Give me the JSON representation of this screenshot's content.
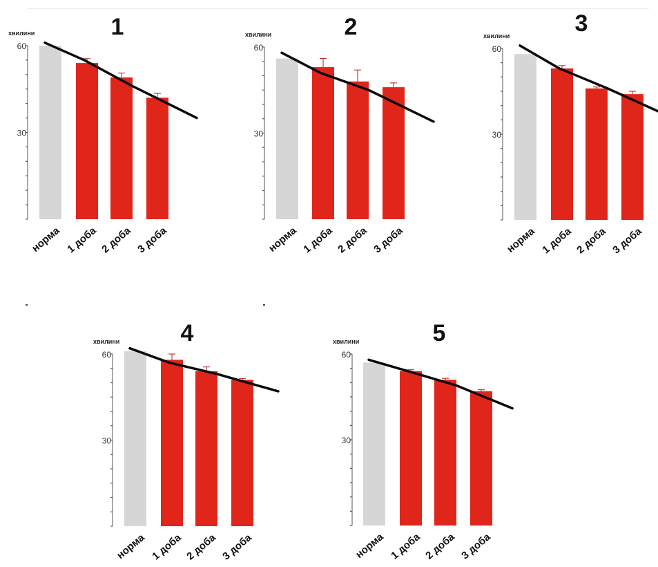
{
  "chart_data": [
    {
      "type": "bar",
      "title": "1",
      "ylabel": "хвилини",
      "ylim": [
        0,
        60
      ],
      "yticks": [
        30,
        60
      ],
      "categories": [
        "норма",
        "1 доба",
        "2 доба",
        "3 доба"
      ],
      "values": [
        60,
        54,
        49,
        42
      ],
      "errors": [
        0,
        1.5,
        1.5,
        1.5
      ],
      "bar_colors": [
        "#d6d6d6",
        "#e0261a",
        "#e0261a",
        "#e0261a"
      ],
      "trend_line": [
        61,
        55,
        46,
        35
      ]
    },
    {
      "type": "bar",
      "title": "2",
      "ylabel": "хвилини",
      "ylim": [
        0,
        60
      ],
      "yticks": [
        30,
        60
      ],
      "categories": [
        "норма",
        "1 доба",
        "2 доба",
        "3 доба"
      ],
      "values": [
        56,
        53,
        48,
        46
      ],
      "errors": [
        0,
        3,
        4,
        1.5
      ],
      "bar_colors": [
        "#d6d6d6",
        "#e0261a",
        "#e0261a",
        "#e0261a"
      ],
      "trend_line": [
        58,
        51,
        45,
        34
      ]
    },
    {
      "type": "bar",
      "title": "3",
      "ylabel": "хвилини",
      "ylim": [
        0,
        60
      ],
      "yticks": [
        30,
        60
      ],
      "categories": [
        "норма",
        "1 доба",
        "2 доба",
        "3 доба"
      ],
      "values": [
        58,
        53,
        46,
        44
      ],
      "errors": [
        0,
        1,
        0.5,
        1
      ],
      "bar_colors": [
        "#d6d6d6",
        "#e0261a",
        "#e0261a",
        "#e0261a"
      ],
      "trend_line": [
        61,
        53,
        46,
        38
      ]
    },
    {
      "type": "bar",
      "title": "4",
      "ylabel": "хвилини",
      "ylim": [
        0,
        60
      ],
      "yticks": [
        30,
        60
      ],
      "categories": [
        "норма",
        "1 доба",
        "2 доба",
        "3 доба"
      ],
      "values": [
        61,
        58,
        54,
        51
      ],
      "errors": [
        0,
        2,
        1.5,
        0.5
      ],
      "bar_colors": [
        "#d6d6d6",
        "#e0261a",
        "#e0261a",
        "#e0261a"
      ],
      "trend_line": [
        62,
        57,
        53,
        47
      ]
    },
    {
      "type": "bar",
      "title": "5",
      "ylabel": "хвилини",
      "ylim": [
        0,
        60
      ],
      "yticks": [
        30,
        60
      ],
      "categories": [
        "норма",
        "1 доба",
        "2 доба",
        "3 доба"
      ],
      "values": [
        57,
        54,
        51,
        47
      ],
      "errors": [
        0,
        0.5,
        0.5,
        0.5
      ],
      "bar_colors": [
        "#d6d6d6",
        "#e0261a",
        "#e0261a",
        "#e0261a"
      ],
      "trend_line": [
        58,
        54,
        49,
        41
      ]
    }
  ]
}
